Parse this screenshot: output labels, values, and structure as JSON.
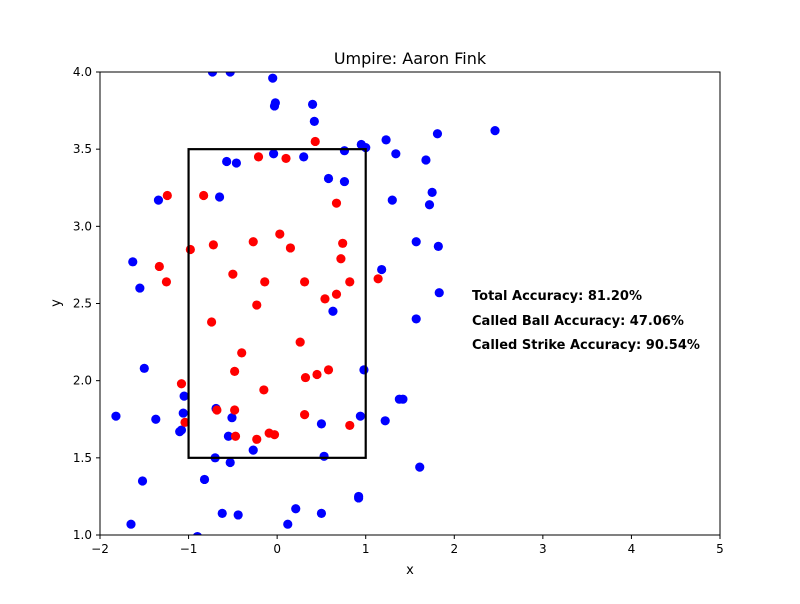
{
  "chart_data": {
    "type": "scatter",
    "title": "Umpire: Aaron Fink",
    "xlabel": "x",
    "ylabel": "y",
    "xlim": [
      -2,
      5
    ],
    "ylim": [
      1,
      4
    ],
    "x_ticks": [
      "−2",
      "−1",
      "0",
      "1",
      "2",
      "3",
      "4",
      "5"
    ],
    "y_ticks": [
      "1.0",
      "1.5",
      "2.0",
      "2.5",
      "3.0",
      "3.5",
      "4.0"
    ],
    "grid": false,
    "strike_zone": {
      "x": [
        -1,
        1
      ],
      "y": [
        1.5,
        3.5
      ],
      "color": "#000000"
    },
    "annotations": [
      "Total Accuracy: 81.20%",
      "Called Ball Accuracy: 47.06%",
      "Called Strike Accuracy: 90.54%"
    ],
    "series": [
      {
        "color": "#0000ff",
        "points": [
          [
            -0.73,
            4.0
          ],
          [
            -0.53,
            4.0
          ],
          [
            -0.05,
            3.96
          ],
          [
            -0.02,
            3.8
          ],
          [
            -0.03,
            3.78
          ],
          [
            0.4,
            3.79
          ],
          [
            0.42,
            3.68
          ],
          [
            1.81,
            3.6
          ],
          [
            2.46,
            3.62
          ],
          [
            1.23,
            3.56
          ],
          [
            0.95,
            3.53
          ],
          [
            1.0,
            3.51
          ],
          [
            0.76,
            3.49
          ],
          [
            1.34,
            3.47
          ],
          [
            0.3,
            3.45
          ],
          [
            1.68,
            3.43
          ],
          [
            -0.04,
            3.47
          ],
          [
            -0.57,
            3.42
          ],
          [
            -0.46,
            3.41
          ],
          [
            0.58,
            3.31
          ],
          [
            0.76,
            3.29
          ],
          [
            1.75,
            3.22
          ],
          [
            1.72,
            3.14
          ],
          [
            1.3,
            3.17
          ],
          [
            -1.34,
            3.17
          ],
          [
            -0.65,
            3.19
          ],
          [
            1.57,
            2.9
          ],
          [
            1.82,
            2.87
          ],
          [
            -1.63,
            2.77
          ],
          [
            1.18,
            2.72
          ],
          [
            -1.55,
            2.6
          ],
          [
            1.83,
            2.57
          ],
          [
            0.63,
            2.45
          ],
          [
            1.57,
            2.4
          ],
          [
            -1.5,
            2.08
          ],
          [
            0.98,
            2.07
          ],
          [
            -1.05,
            1.9
          ],
          [
            -1.06,
            1.79
          ],
          [
            -1.37,
            1.75
          ],
          [
            -0.69,
            1.82
          ],
          [
            -0.51,
            1.76
          ],
          [
            0.94,
            1.77
          ],
          [
            1.22,
            1.74
          ],
          [
            1.38,
            1.88
          ],
          [
            1.42,
            1.88
          ],
          [
            0.5,
            1.72
          ],
          [
            -1.1,
            1.67
          ],
          [
            -1.08,
            1.68
          ],
          [
            -0.55,
            1.64
          ],
          [
            -0.27,
            1.55
          ],
          [
            -0.7,
            1.5
          ],
          [
            -0.53,
            1.47
          ],
          [
            0.53,
            1.51
          ],
          [
            1.61,
            1.44
          ],
          [
            -1.52,
            1.35
          ],
          [
            -0.82,
            1.36
          ],
          [
            0.21,
            1.17
          ],
          [
            0.5,
            1.14
          ],
          [
            0.92,
            1.25
          ],
          [
            0.92,
            1.24
          ],
          [
            -0.62,
            1.14
          ],
          [
            -0.44,
            1.13
          ],
          [
            0.12,
            1.07
          ],
          [
            -1.65,
            1.07
          ],
          [
            -1.82,
            1.77
          ],
          [
            -0.9,
            0.99
          ]
        ]
      },
      {
        "color": "#ff0000",
        "points": [
          [
            0.43,
            3.55
          ],
          [
            -0.21,
            3.45
          ],
          [
            0.1,
            3.44
          ],
          [
            -1.24,
            3.2
          ],
          [
            -0.83,
            3.2
          ],
          [
            0.67,
            3.15
          ],
          [
            0.03,
            2.95
          ],
          [
            -0.27,
            2.9
          ],
          [
            -0.72,
            2.88
          ],
          [
            -0.98,
            2.85
          ],
          [
            0.15,
            2.86
          ],
          [
            0.74,
            2.89
          ],
          [
            0.72,
            2.79
          ],
          [
            -1.33,
            2.74
          ],
          [
            -0.5,
            2.69
          ],
          [
            -1.25,
            2.64
          ],
          [
            -0.14,
            2.64
          ],
          [
            0.31,
            2.64
          ],
          [
            0.82,
            2.64
          ],
          [
            0.67,
            2.56
          ],
          [
            0.54,
            2.53
          ],
          [
            -0.23,
            2.49
          ],
          [
            1.14,
            2.66
          ],
          [
            -0.74,
            2.38
          ],
          [
            0.26,
            2.25
          ],
          [
            -0.4,
            2.18
          ],
          [
            -0.48,
            2.06
          ],
          [
            0.45,
            2.04
          ],
          [
            0.58,
            2.07
          ],
          [
            0.32,
            2.02
          ],
          [
            -1.08,
            1.98
          ],
          [
            -0.15,
            1.94
          ],
          [
            -0.68,
            1.81
          ],
          [
            -0.48,
            1.81
          ],
          [
            0.31,
            1.78
          ],
          [
            -1.04,
            1.73
          ],
          [
            0.82,
            1.71
          ],
          [
            -0.09,
            1.66
          ],
          [
            -0.03,
            1.65
          ],
          [
            -0.47,
            1.64
          ],
          [
            -0.23,
            1.62
          ]
        ]
      }
    ]
  }
}
